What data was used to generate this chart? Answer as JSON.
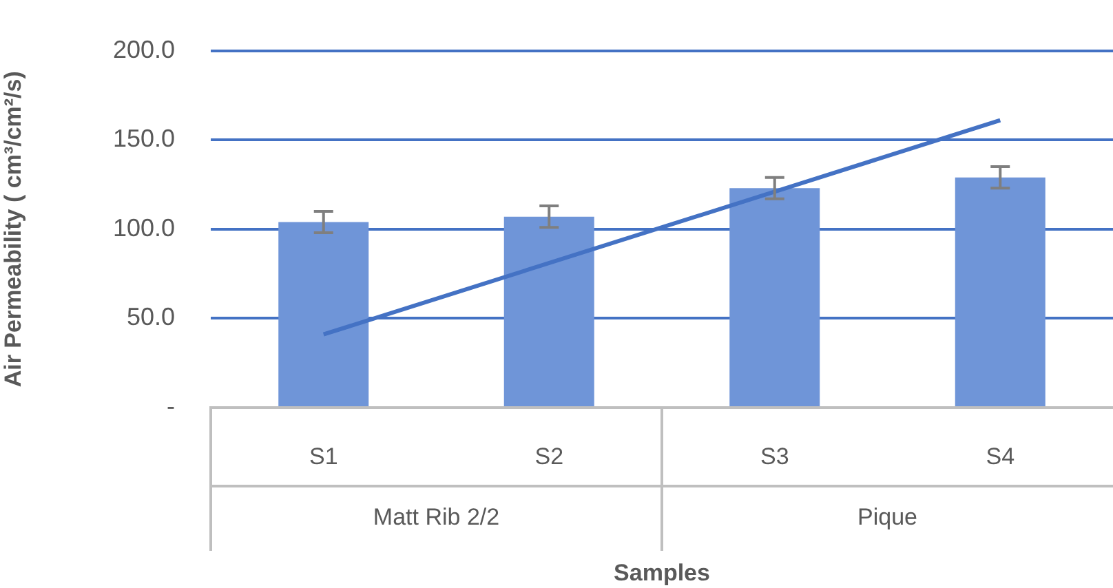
{
  "chart_data": {
    "type": "bar",
    "xlabel": "Samples",
    "ylabel": "Air Permeability ( cm³/cm²/s)",
    "categories": [
      "S1",
      "S2",
      "S3",
      "S4"
    ],
    "series": [
      {
        "color": "#6f95d8",
        "values": [
          104,
          107,
          123,
          129
        ],
        "errors": [
          6,
          6,
          6,
          6
        ]
      },
      {
        "type": "line",
        "color": "#4472c4",
        "x": [
          "S1",
          "S4"
        ],
        "values": [
          41,
          161
        ]
      }
    ],
    "annotations": [
      "Matt Rib 2/2",
      "Pique"
    ],
    "ylim": [
      0,
      200
    ],
    "yticks": [
      {
        "value": 0,
        "label": "-"
      },
      {
        "value": 50,
        "label": "50.0"
      },
      {
        "value": 100,
        "label": "100.0"
      },
      {
        "value": 150,
        "label": "150.0"
      },
      {
        "value": 200,
        "label": "200.0"
      }
    ],
    "grid": "y",
    "legend": false
  }
}
